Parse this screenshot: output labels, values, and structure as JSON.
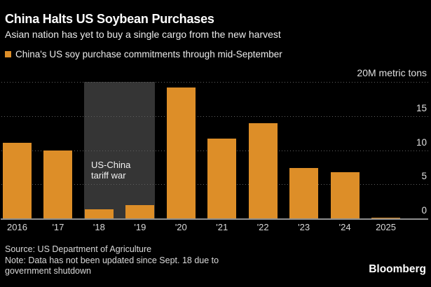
{
  "header": {
    "title": "China Halts US Soybean Purchases",
    "subtitle": "Asian nation has yet to buy a single cargo from the new harvest"
  },
  "legend": {
    "label": "China's US soy purchase commitments through mid-September",
    "swatch_color": "#dd8e28"
  },
  "chart_data": {
    "type": "bar",
    "title": "China's US soy purchase commitments through mid-September",
    "unit_label": "20M metric tons",
    "categories": [
      "2016",
      "'17",
      "'18",
      "'19",
      "'20",
      "'21",
      "'22",
      "'23",
      "'24",
      "2025"
    ],
    "values": [
      11.1,
      10.0,
      1.3,
      2.0,
      19.2,
      11.7,
      13.9,
      7.4,
      6.8,
      0.15
    ],
    "ylim": [
      0,
      20
    ],
    "gridline_values": [
      20,
      15,
      10,
      5
    ],
    "ytick_labels": [
      "15",
      "10",
      "5",
      "0"
    ],
    "ytick_values": [
      15,
      10,
      5,
      0
    ],
    "grid": "dotted-horizontal",
    "legend_position": "top-left",
    "bar_color": "#dd8e28",
    "band_color": "#353535",
    "annotation": {
      "label": "US-China tariff war",
      "band_category_start": "'18",
      "band_category_end": "'19"
    }
  },
  "footer": {
    "source": "Source: US Department of Agriculture",
    "note": "Note: Data has not been updated since Sept. 18 due to government shutdown",
    "brand": "Bloomberg"
  }
}
